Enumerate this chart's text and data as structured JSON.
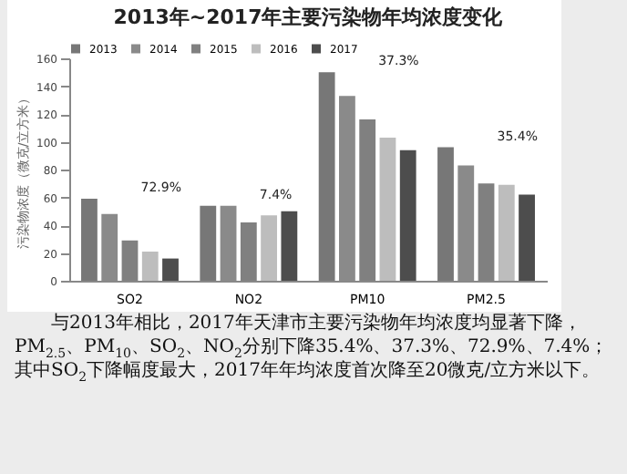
{
  "chart_data": {
    "type": "bar",
    "title": "2013年~2017年主要污染物年均浓度变化",
    "ylabel": "污染物浓度（微克/立方米）",
    "categories": [
      "SO2",
      "NO2",
      "PM10",
      "PM2.5"
    ],
    "series": [
      {
        "name": "2013",
        "color": "#777777",
        "values": [
          59,
          54,
          150,
          96
        ]
      },
      {
        "name": "2014",
        "color": "#8a8a8a",
        "values": [
          48,
          54,
          133,
          83
        ]
      },
      {
        "name": "2015",
        "color": "#808080",
        "values": [
          29,
          42,
          116,
          70
        ]
      },
      {
        "name": "2016",
        "color": "#bdbdbd",
        "values": [
          21,
          47,
          103,
          69
        ]
      },
      {
        "name": "2017",
        "color": "#4d4d4d",
        "values": [
          16,
          50,
          94,
          62
        ]
      }
    ],
    "ylim": [
      0,
      160
    ],
    "yticks": [
      0,
      20,
      40,
      60,
      80,
      100,
      120,
      140,
      160
    ],
    "grid": false,
    "legend": "top",
    "annotations": [
      "72.9%",
      "7.4%",
      "37.3%",
      "35.4%",
      "与2013年相比，2017年天津市主要污染物年均浓度均显著下降，PM$_{2.5}$、PM$_{10}$、SO$_{2}$、NO$_{2}$分别下降35.4%、37.3%、72.9%、7.4%；其中SO$_{2}$下降幅度最大，2017年年均浓度首次降至20微克/立方米以下。"
    ]
  }
}
